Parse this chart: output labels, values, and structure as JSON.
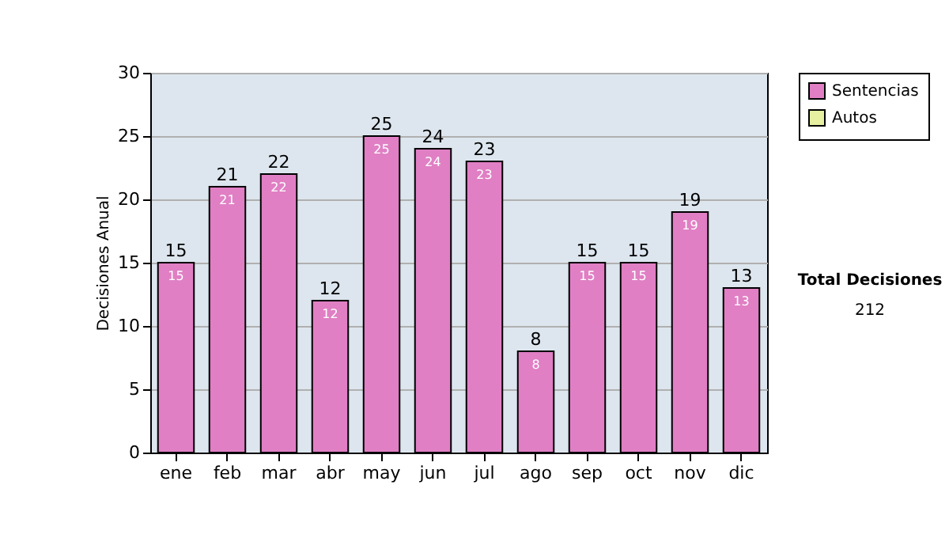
{
  "chart_data": {
    "type": "bar",
    "ylabel": "Decisiones Anual",
    "categories": [
      "ene",
      "feb",
      "mar",
      "abr",
      "may",
      "jun",
      "jul",
      "ago",
      "sep",
      "oct",
      "nov",
      "dic"
    ],
    "series": [
      {
        "name": "Sentencias",
        "color": "#e07fc4",
        "values": [
          15,
          21,
          22,
          12,
          25,
          24,
          23,
          8,
          15,
          15,
          19,
          13
        ]
      },
      {
        "name": "Autos",
        "color": "#e6f0a0",
        "values": [
          null,
          null,
          null,
          null,
          null,
          null,
          null,
          null,
          null,
          null,
          null,
          null
        ]
      }
    ],
    "stacked": true,
    "data_labels": true,
    "totals": [
      "15",
      "21",
      "22",
      "12",
      "25",
      "24",
      "23",
      "8",
      "15",
      "15",
      "19",
      "13"
    ],
    "ylim": [
      0,
      30
    ],
    "yticks": [
      0,
      5,
      10,
      15,
      20,
      25,
      30
    ],
    "grid": "y",
    "legend": "right",
    "annotations": [
      "Total Decisiones",
      "212"
    ]
  }
}
